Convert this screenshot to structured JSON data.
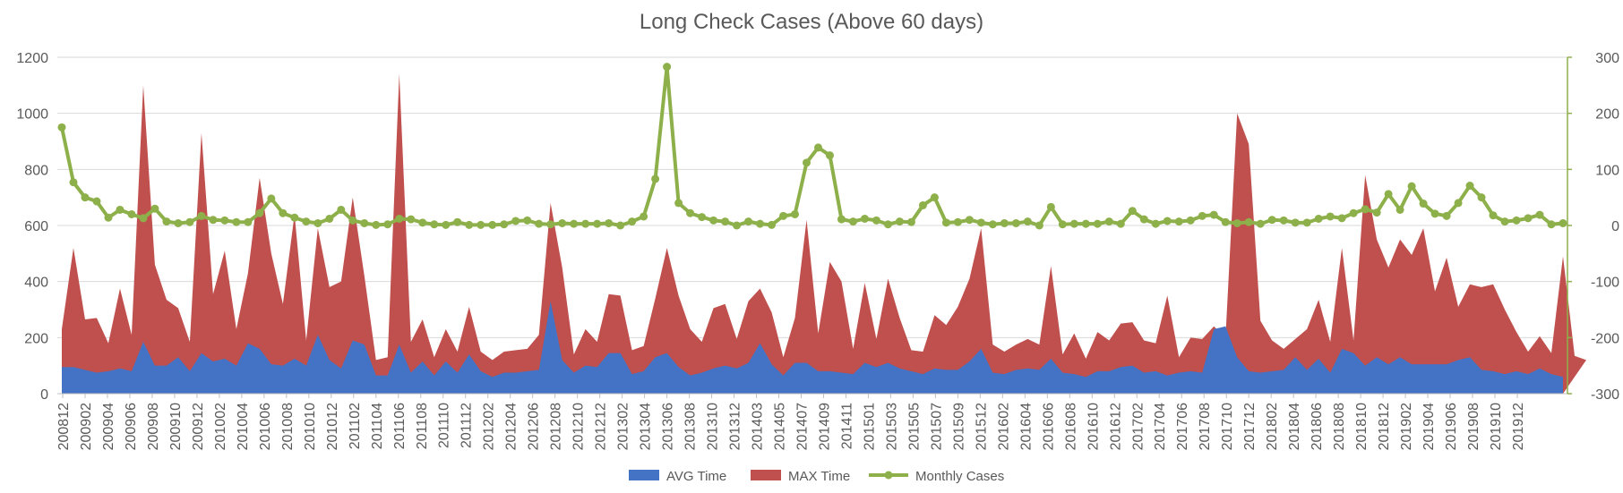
{
  "chart_data": {
    "type": "area",
    "title": "Long Check Cases (Above 60 days)",
    "colors": {
      "avg": "#4472C4",
      "max": "#C0504D",
      "monthly": "#8DB04A",
      "grid": "#D9D9D9",
      "axis": "#BFBFBF",
      "text": "#595959"
    },
    "y_left": {
      "ylim": [
        0,
        1200
      ],
      "ticks": [
        0,
        200,
        400,
        600,
        800,
        1000,
        1200
      ]
    },
    "y_right": {
      "ylim": [
        -300,
        300
      ],
      "ticks": [
        -300,
        -200,
        -100,
        0,
        100,
        200,
        300
      ]
    },
    "x_tick_labels": [
      "200812",
      "200902",
      "200904",
      "200906",
      "200908",
      "200910",
      "200912",
      "201002",
      "201004",
      "201006",
      "201008",
      "201010",
      "201012",
      "201102",
      "201104",
      "201106",
      "201108",
      "201110",
      "201112",
      "201202",
      "201204",
      "201206",
      "201208",
      "201210",
      "201212",
      "201302",
      "201304",
      "201306",
      "201308",
      "201310",
      "201312",
      "201403",
      "201405",
      "201407",
      "201409",
      "201411",
      "201501",
      "201503",
      "201505",
      "201507",
      "201509",
      "201512",
      "201602",
      "201604",
      "201606",
      "201608",
      "201610",
      "201612",
      "201702",
      "201704",
      "201706",
      "201708",
      "201710",
      "201712",
      "201802",
      "201804",
      "201806",
      "201808",
      "201810",
      "201812",
      "201902",
      "201904",
      "201906",
      "201908",
      "201910",
      "201912"
    ],
    "legend": [
      {
        "name": "AVG Time",
        "key": "avg",
        "kind": "area"
      },
      {
        "name": "MAX Time",
        "key": "max",
        "kind": "area"
      },
      {
        "name": "Monthly Cases",
        "key": "monthly",
        "kind": "line"
      }
    ],
    "series": [
      {
        "name": "AVG Time",
        "axis": "left",
        "values": [
          95,
          95,
          85,
          75,
          80,
          90,
          80,
          185,
          100,
          100,
          130,
          80,
          145,
          115,
          125,
          100,
          180,
          160,
          105,
          100,
          125,
          100,
          210,
          120,
          90,
          190,
          175,
          65,
          65,
          175,
          75,
          115,
          65,
          115,
          75,
          140,
          80,
          60,
          75,
          75,
          80,
          85,
          330,
          120,
          75,
          100,
          95,
          145,
          145,
          70,
          80,
          130,
          145,
          95,
          65,
          75,
          90,
          100,
          90,
          110,
          180,
          105,
          65,
          110,
          110,
          80,
          80,
          75,
          70,
          110,
          95,
          110,
          90,
          80,
          70,
          90,
          85,
          85,
          115,
          160,
          75,
          70,
          85,
          90,
          85,
          125,
          75,
          70,
          60,
          80,
          80,
          95,
          100,
          75,
          80,
          65,
          75,
          80,
          75,
          230,
          240,
          130,
          80,
          75,
          80,
          85,
          130,
          85,
          125,
          75,
          160,
          145,
          100,
          130,
          105,
          130,
          105,
          105,
          105,
          105,
          120,
          130,
          85,
          80,
          70,
          80,
          70,
          90,
          70,
          60
        ]
      },
      {
        "name": "MAX Time",
        "axis": "left",
        "values": [
          230,
          520,
          265,
          270,
          180,
          375,
          210,
          1100,
          460,
          335,
          305,
          185,
          930,
          355,
          510,
          230,
          430,
          770,
          500,
          320,
          640,
          190,
          590,
          380,
          400,
          700,
          420,
          120,
          130,
          1140,
          185,
          265,
          130,
          230,
          150,
          310,
          150,
          120,
          150,
          155,
          160,
          210,
          680,
          450,
          140,
          230,
          185,
          355,
          350,
          155,
          170,
          340,
          520,
          350,
          230,
          185,
          305,
          320,
          195,
          330,
          375,
          290,
          130,
          270,
          620,
          215,
          470,
          400,
          160,
          395,
          195,
          410,
          270,
          155,
          150,
          280,
          245,
          310,
          410,
          590,
          175,
          150,
          175,
          195,
          175,
          455,
          140,
          215,
          125,
          220,
          190,
          250,
          255,
          190,
          180,
          350,
          130,
          200,
          195,
          240,
          200,
          1000,
          890,
          260,
          190,
          160,
          195,
          230,
          335,
          185,
          520,
          190,
          780,
          550,
          450,
          550,
          495,
          590,
          365,
          485,
          310,
          390,
          380,
          390,
          300,
          220,
          150,
          205,
          145,
          490,
          135,
          120
        ]
      },
      {
        "name": "Monthly Cases",
        "axis": "right",
        "values": [
          175,
          77,
          50,
          43,
          14,
          28,
          20,
          13,
          30,
          7,
          4,
          6,
          17,
          10,
          9,
          6,
          6,
          22,
          48,
          22,
          14,
          7,
          4,
          12,
          28,
          9,
          4,
          1,
          2,
          12,
          11,
          5,
          2,
          1,
          6,
          1,
          1,
          1,
          2,
          8,
          9,
          3,
          2,
          4,
          3,
          3,
          3,
          4,
          0,
          7,
          16,
          83,
          283,
          40,
          22,
          15,
          9,
          7,
          0,
          7,
          3,
          1,
          17,
          20,
          112,
          139,
          125,
          11,
          7,
          12,
          9,
          2,
          7,
          6,
          36,
          50,
          5,
          6,
          10,
          5,
          2,
          4,
          4,
          7,
          0,
          33,
          2,
          3,
          3,
          3,
          7,
          3,
          26,
          11,
          3,
          8,
          7,
          9,
          17,
          19,
          6,
          4,
          6,
          3,
          10,
          9,
          5,
          5,
          12,
          16,
          13,
          22,
          29,
          23,
          56,
          28,
          70,
          39,
          21,
          17,
          40,
          71,
          50,
          18,
          7,
          9,
          13,
          19,
          2,
          4
        ]
      }
    ]
  }
}
